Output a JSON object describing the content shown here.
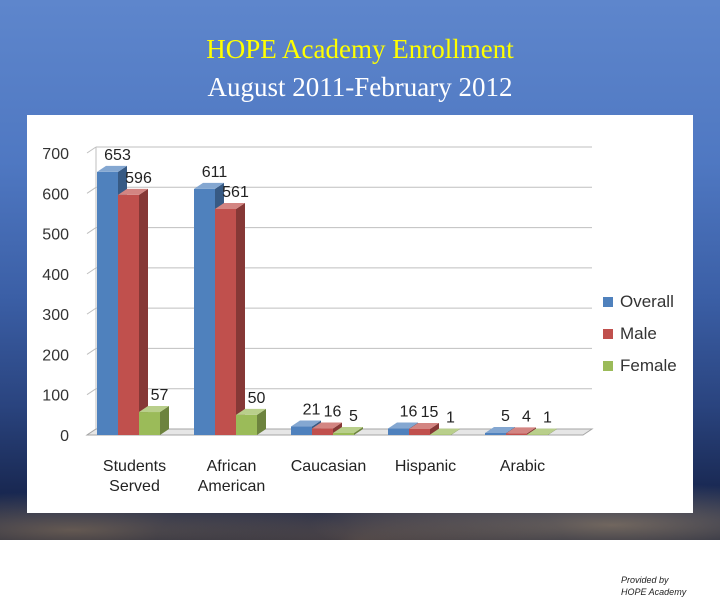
{
  "slide": {
    "title_line_1": "HOPE Academy Enrollment",
    "title_line_2": "August 2011-February 2012",
    "credit_line_1": "Provided by",
    "credit_line_2": "HOPE Academy"
  },
  "chart_data": {
    "type": "bar",
    "style": "3d-clustered-column",
    "categories": [
      "Students Served",
      "African American",
      "Caucasian",
      "Hispanic",
      "Arabic"
    ],
    "category_lines": [
      [
        "Students",
        "Served"
      ],
      [
        "African",
        "American"
      ],
      [
        "Caucasian"
      ],
      [
        "Hispanic"
      ],
      [
        "Arabic"
      ]
    ],
    "series": [
      {
        "name": "Overall",
        "values": [
          653,
          611,
          21,
          16,
          5
        ],
        "color": "#4f81bd"
      },
      {
        "name": "Male",
        "values": [
          596,
          561,
          16,
          15,
          4
        ],
        "color": "#c0504d"
      },
      {
        "name": "Female",
        "values": [
          57,
          50,
          5,
          1,
          1
        ],
        "color": "#9bbb59"
      }
    ],
    "ylim": [
      0,
      700
    ],
    "yticks": [
      "0",
      "100",
      "200",
      "300",
      "400",
      "500",
      "600",
      "700"
    ],
    "grid": true,
    "legend": "right",
    "data_labels": true
  }
}
